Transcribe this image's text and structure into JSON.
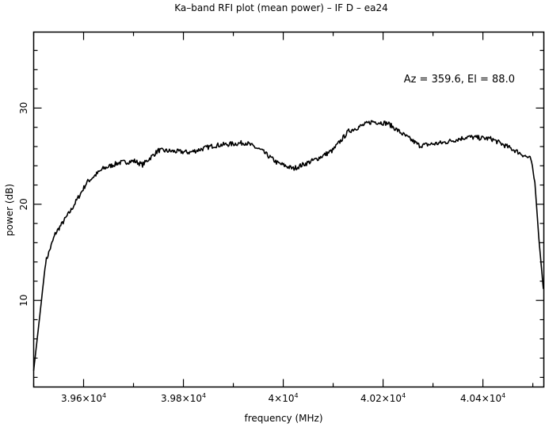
{
  "chart_data": {
    "type": "line",
    "title": "Ka–band RFI plot (mean power) – IF D – ea24",
    "annotation": "Az = 359.6, El = 88.0",
    "xlabel": "frequency (MHz)",
    "ylabel": "power (dB)",
    "xlim": [
      39500,
      40522
    ],
    "ylim": [
      1,
      37.9
    ],
    "grid": false,
    "x_ticks": [
      {
        "value": 39600,
        "mantissa": "3.96×10",
        "exp": "4"
      },
      {
        "value": 39800,
        "mantissa": "3.98×10",
        "exp": "4"
      },
      {
        "value": 40000,
        "mantissa": "4×10",
        "exp": "4"
      },
      {
        "value": 40200,
        "mantissa": "4.02×10",
        "exp": "4"
      },
      {
        "value": 40400,
        "mantissa": "4.04×10",
        "exp": "4"
      }
    ],
    "x_minor_step": 100,
    "y_ticks": [
      {
        "value": 10,
        "label": "10"
      },
      {
        "value": 20,
        "label": "20"
      },
      {
        "value": 30,
        "label": "30"
      }
    ],
    "y_minor_step": 2,
    "series": [
      {
        "name": "mean power",
        "color": "#000000",
        "x": [
          39500,
          39512,
          39524,
          39543,
          39575,
          39607,
          39639,
          39670,
          39702,
          39718,
          39750,
          39813,
          39861,
          39925,
          39956,
          39988,
          40020,
          40067,
          40099,
          40131,
          40178,
          40210,
          40242,
          40273,
          40321,
          40369,
          40417,
          40464,
          40496,
          40504,
          40512,
          40521
        ],
        "y": [
          2.7,
          8.3,
          14,
          16.9,
          19.4,
          22.3,
          23.7,
          24.3,
          24.5,
          24.1,
          25.6,
          25.4,
          26.1,
          26.4,
          25.6,
          24.3,
          23.7,
          24.7,
          25.6,
          27.6,
          28.6,
          28.4,
          27.2,
          26.1,
          26.4,
          27,
          26.8,
          25.6,
          24.7,
          22.3,
          16.5,
          11.2
        ]
      }
    ]
  }
}
